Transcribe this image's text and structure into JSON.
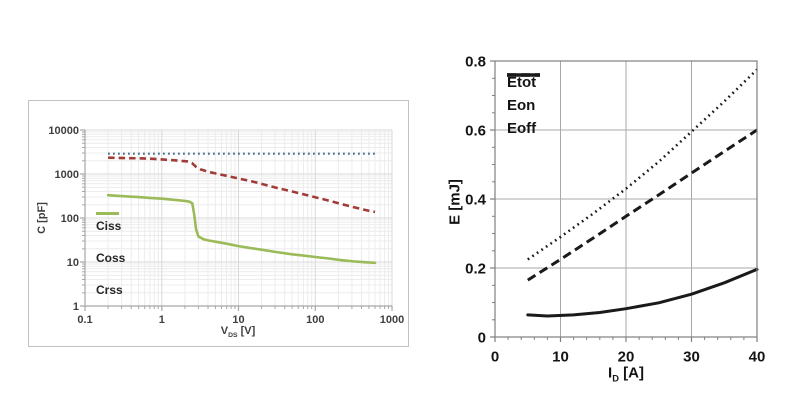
{
  "page": {
    "background": "#ffffff"
  },
  "colors": {
    "ciss": "#366384",
    "coss": "#A13C38",
    "crss": "#9BBB59",
    "right_series": "#1a1a1a",
    "left_grid_major": "#d9d9d9",
    "left_grid_minor": "#ececec",
    "left_axis": "#a6a6a6",
    "right_grid": "#a8a8a8",
    "right_border": "#7f7f7f"
  },
  "chart_data": [
    {
      "type": "line",
      "title": "",
      "xlabel": {
        "pre": "V",
        "sub": "DS",
        "post": " [V]"
      },
      "ylabel": "C [pF]",
      "xscale": "log",
      "yscale": "log",
      "xlim": [
        0.1,
        1000
      ],
      "ylim": [
        1,
        10000
      ],
      "xticks": [
        0.1,
        1,
        10,
        100,
        1000
      ],
      "xtick_labels": [
        "0.1",
        "1",
        "10",
        "100",
        "1000"
      ],
      "yticks": [
        1,
        10,
        100,
        1000,
        10000
      ],
      "ytick_labels": [
        "1",
        "10",
        "100",
        "1000",
        "10000"
      ],
      "grid": "major+minor",
      "legend_position": "inside-middle-left",
      "series": [
        {
          "name": "Ciss",
          "style": "dotted",
          "color": "#366384",
          "points": [
            [
              0.2,
              2900
            ],
            [
              1,
              2900
            ],
            [
              5,
              2900
            ],
            [
              30,
              2900
            ],
            [
              150,
              2900
            ],
            [
              600,
              2900
            ]
          ]
        },
        {
          "name": "Coss",
          "style": "dashed",
          "color": "#A13C38",
          "points": [
            [
              0.2,
              2350
            ],
            [
              0.35,
              2300
            ],
            [
              0.5,
              2270
            ],
            [
              0.7,
              2230
            ],
            [
              1,
              2150
            ],
            [
              1.4,
              2060
            ],
            [
              1.8,
              1990
            ],
            [
              2.2,
              1930
            ],
            [
              2.5,
              1750
            ],
            [
              2.8,
              1450
            ],
            [
              3.2,
              1270
            ],
            [
              4,
              1130
            ],
            [
              5,
              1030
            ],
            [
              7,
              910
            ],
            [
              10,
              790
            ],
            [
              15,
              680
            ],
            [
              22,
              570
            ],
            [
              32,
              480
            ],
            [
              50,
              400
            ],
            [
              70,
              345
            ],
            [
              100,
              295
            ],
            [
              150,
              248
            ],
            [
              220,
              207
            ],
            [
              320,
              175
            ],
            [
              450,
              152
            ],
            [
              600,
              137
            ]
          ]
        },
        {
          "name": "Crss",
          "style": "solid",
          "color": "#9BBB59",
          "points": [
            [
              0.2,
              330
            ],
            [
              0.35,
              310
            ],
            [
              0.5,
              298
            ],
            [
              0.7,
              287
            ],
            [
              1,
              275
            ],
            [
              1.5,
              258
            ],
            [
              2,
              245
            ],
            [
              2.3,
              235
            ],
            [
              2.5,
              215
            ],
            [
              2.65,
              120
            ],
            [
              2.8,
              55
            ],
            [
              3,
              38
            ],
            [
              3.5,
              33
            ],
            [
              4,
              31
            ],
            [
              5,
              29
            ],
            [
              7,
              26
            ],
            [
              10,
              23
            ],
            [
              15,
              20.5
            ],
            [
              20,
              19
            ],
            [
              30,
              17
            ],
            [
              50,
              15
            ],
            [
              70,
              14
            ],
            [
              100,
              13
            ],
            [
              150,
              12
            ],
            [
              220,
              11
            ],
            [
              320,
              10.3
            ],
            [
              450,
              9.9
            ],
            [
              600,
              9.6
            ]
          ]
        }
      ]
    },
    {
      "type": "line",
      "title": "",
      "xlabel": {
        "pre": "I",
        "sub": "D",
        "post": " [A]"
      },
      "ylabel": "E [mJ]",
      "xscale": "linear",
      "yscale": "linear",
      "xlim": [
        0,
        40
      ],
      "ylim": [
        0,
        0.8
      ],
      "xticks": [
        0,
        10,
        20,
        30,
        40
      ],
      "xtick_labels": [
        "0",
        "10",
        "20",
        "30",
        "40"
      ],
      "yticks": [
        0,
        0.2,
        0.4,
        0.6,
        0.8
      ],
      "ytick_labels": [
        "0",
        "0.2",
        "0.4",
        "0.6",
        "0.8"
      ],
      "x_minor_step": 2,
      "y_minor_step": 0.05,
      "grid": "major",
      "legend_position": "inside-top-left",
      "series": [
        {
          "name": "Etot",
          "style": "dotted",
          "color": "#1a1a1a",
          "points": [
            [
              5,
              0.225
            ],
            [
              10,
              0.29
            ],
            [
              15,
              0.358
            ],
            [
              20,
              0.43
            ],
            [
              25,
              0.508
            ],
            [
              30,
              0.595
            ],
            [
              35,
              0.683
            ],
            [
              40,
              0.775
            ]
          ]
        },
        {
          "name": "Eon",
          "style": "dashed",
          "color": "#1a1a1a",
          "points": [
            [
              5,
              0.165
            ],
            [
              10,
              0.225
            ],
            [
              15,
              0.287
            ],
            [
              20,
              0.35
            ],
            [
              25,
              0.412
            ],
            [
              30,
              0.475
            ],
            [
              35,
              0.538
            ],
            [
              40,
              0.6
            ]
          ]
        },
        {
          "name": "Eoff",
          "style": "solid",
          "color": "#1a1a1a",
          "points": [
            [
              5,
              0.064
            ],
            [
              8,
              0.061
            ],
            [
              12,
              0.064
            ],
            [
              16,
              0.071
            ],
            [
              20,
              0.082
            ],
            [
              25,
              0.099
            ],
            [
              30,
              0.124
            ],
            [
              35,
              0.157
            ],
            [
              40,
              0.196
            ]
          ]
        }
      ]
    }
  ]
}
